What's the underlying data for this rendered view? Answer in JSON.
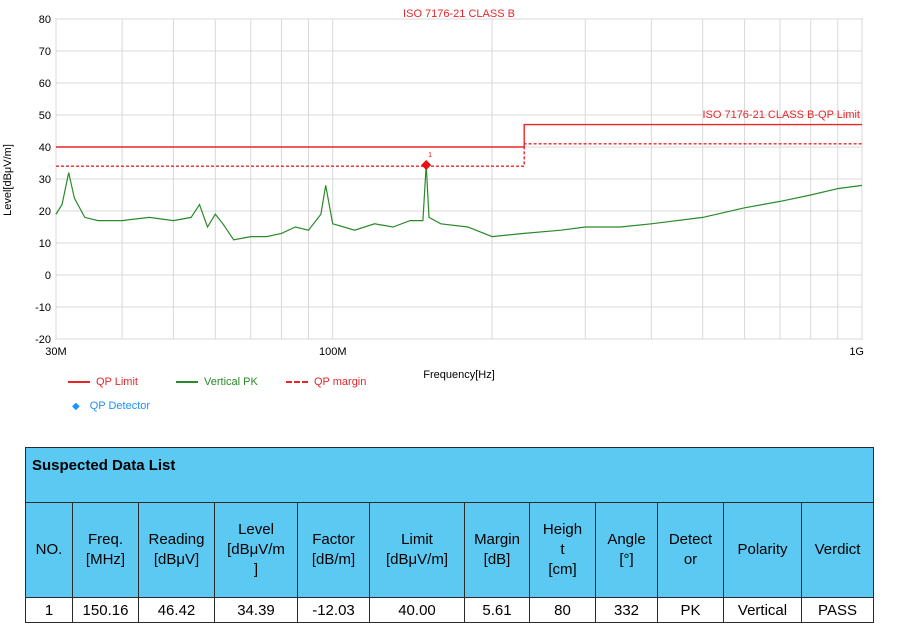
{
  "chart_data": {
    "type": "line",
    "title": "ISO 7176-21 CLASS B",
    "xlabel": "Frequency[Hz]",
    "ylabel": "Level[dBμV/m]",
    "x_scale": "log",
    "xlim": [
      30000000,
      1000000000
    ],
    "ylim": [
      -20,
      80
    ],
    "y_ticks": [
      "80",
      "70",
      "60",
      "50",
      "40",
      "30",
      "20",
      "10",
      "0",
      "-10",
      "-20"
    ],
    "x_tick_labels": [
      {
        "value": 30000000,
        "label": "30M"
      },
      {
        "value": 100000000,
        "label": "100M"
      },
      {
        "value": 1000000000,
        "label": "1G"
      }
    ],
    "limit_annotation": "ISO 7176-21 CLASS B-QP Limit",
    "grid": true,
    "series": [
      {
        "name": "QP Limit",
        "style": "solid",
        "color": "#e8262a",
        "x": [
          30000000,
          230000000,
          230000000,
          1000000000
        ],
        "y": [
          40,
          40,
          47,
          47
        ]
      },
      {
        "name": "QP margin",
        "style": "dashed",
        "color": "#e8262a",
        "x": [
          30000000,
          230000000,
          230000000,
          1000000000
        ],
        "y": [
          34,
          34,
          41,
          41
        ]
      },
      {
        "name": "Vertical PK",
        "style": "solid",
        "color": "#2a8a2a",
        "x": [
          30000000,
          30800000,
          31700000,
          32500000,
          34000000,
          36000000,
          40000000,
          45000000,
          50000000,
          54000000,
          56000000,
          58000000,
          60000000,
          62000000,
          65000000,
          70000000,
          75000000,
          80000000,
          85000000,
          90000000,
          95000000,
          97000000,
          100000000,
          105000000,
          110000000,
          120000000,
          130000000,
          140000000,
          148000000,
          150160000,
          152000000,
          160000000,
          180000000,
          200000000,
          230000000,
          270000000,
          300000000,
          350000000,
          400000000,
          500000000,
          600000000,
          700000000,
          800000000,
          900000000,
          1000000000
        ],
        "y": [
          19,
          22,
          32,
          24,
          18,
          17,
          17,
          18,
          17,
          18,
          22,
          15,
          19,
          16,
          11,
          12,
          12,
          13,
          15,
          14,
          19,
          28,
          16,
          15,
          14,
          16,
          15,
          17,
          17,
          34.39,
          18,
          16,
          15,
          12,
          13,
          14,
          15,
          15,
          16,
          18,
          21,
          23,
          25,
          27,
          28
        ]
      },
      {
        "name": "QP Detector",
        "type": "point",
        "color": "#e81010",
        "x": [
          150160000
        ],
        "y": [
          34.39
        ],
        "labels": [
          "1"
        ]
      }
    ],
    "legend": [
      {
        "label": "QP Limit",
        "color": "#e8262a",
        "kind": "solid"
      },
      {
        "label": "Vertical PK",
        "color": "#2a8a2a",
        "kind": "solid"
      },
      {
        "label": "QP margin",
        "color": "#e8262a",
        "kind": "dashed"
      },
      {
        "label": "QP Detector",
        "color": "#1e90ff",
        "kind": "diamond"
      }
    ],
    "legend_position": "bottom-left"
  },
  "table": {
    "title": "Suspected Data List",
    "headers": [
      "NO.",
      "Freq.\n[MHz]",
      "Reading\n[dBμV]",
      "Level\n[dBμV/m\n]",
      "Factor\n[dB/m]",
      "Limit\n[dBμV/m]",
      "Margin\n[dB]",
      "Heigh\nt\n[cm]",
      "Angle\n[°]",
      "Detect\nor",
      "Polarity",
      "Verdict"
    ],
    "rows": [
      [
        "1",
        "150.16",
        "46.42",
        "34.39",
        "-12.03",
        "40.00",
        "5.61",
        "80",
        "332",
        "PK",
        "Vertical",
        "PASS"
      ]
    ]
  }
}
